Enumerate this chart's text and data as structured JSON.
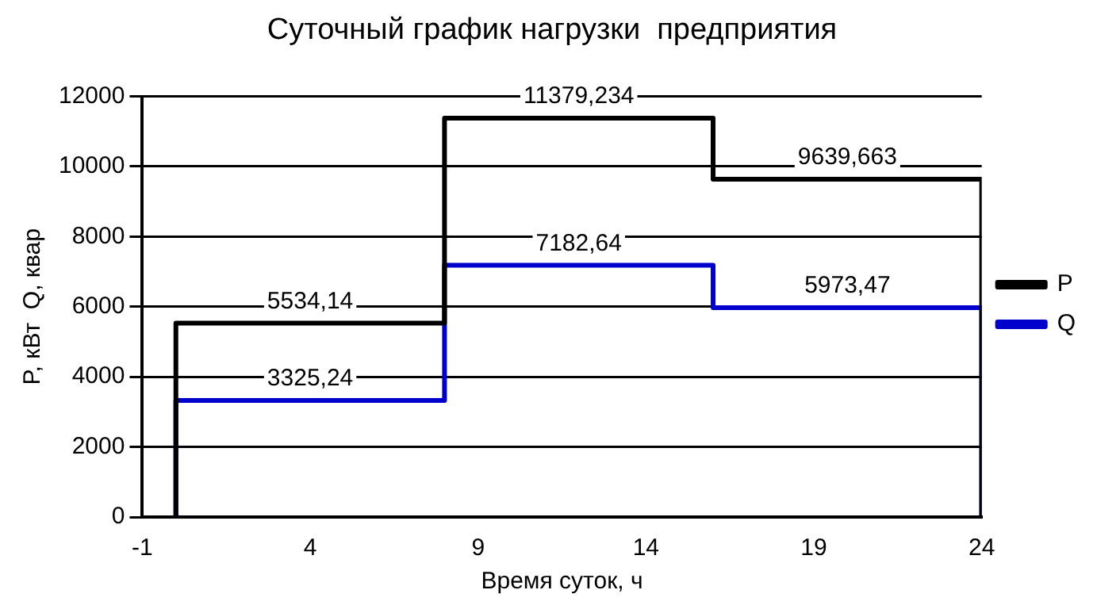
{
  "chart_data": {
    "type": "line",
    "title": "Суточный график нагрузки  предприятия",
    "xlabel": "Время суток, ч",
    "ylabel": "P, кВт  Q, квар",
    "series": [
      {
        "name": "P",
        "color": "#000000",
        "x": [
          0,
          0,
          4,
          8,
          8,
          12,
          16,
          16,
          20,
          24,
          24
        ],
        "values": [
          0,
          5534.14,
          5534.14,
          5534.14,
          11379.234,
          11379.234,
          11379.234,
          9639.663,
          9639.663,
          9639.663,
          0
        ],
        "value_labels": [
          null,
          null,
          "5534,14",
          null,
          null,
          "11379,234",
          null,
          null,
          "9639,663",
          null,
          null
        ]
      },
      {
        "name": "Q",
        "color": "#0000cc",
        "x": [
          0,
          0,
          4,
          8,
          8,
          12,
          16,
          16,
          20,
          24,
          24
        ],
        "values": [
          0,
          3325.24,
          3325.24,
          3325.24,
          7182.64,
          7182.64,
          7182.64,
          5973.47,
          5973.47,
          5973.47,
          0
        ],
        "value_labels": [
          null,
          null,
          "3325,24",
          null,
          null,
          "7182,64",
          null,
          null,
          "5973,47",
          null,
          null
        ]
      }
    ],
    "xlim": [
      -1,
      24
    ],
    "xticks": [
      -1,
      4,
      9,
      14,
      19,
      24
    ],
    "ylim": [
      0,
      12000
    ],
    "yticks": [
      0,
      2000,
      4000,
      6000,
      8000,
      10000,
      12000
    ],
    "grid": "y",
    "legend": "right",
    "marker": "none",
    "line_style": "solid"
  }
}
